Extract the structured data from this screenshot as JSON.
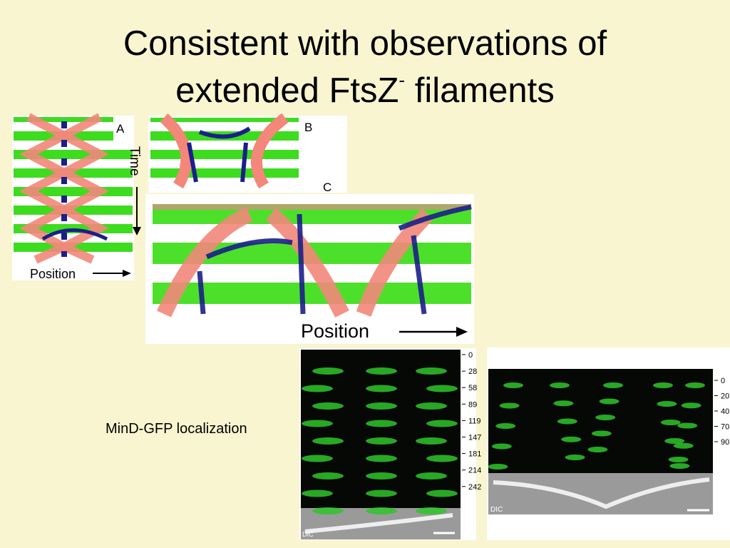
{
  "slide": {
    "title": {
      "line1": "Consistent with observations of",
      "line2": "extended FtsZ",
      "superscript": "-",
      "line2_end": " filaments"
    },
    "caption": "MinD-GFP localization",
    "kymographs": {
      "panel_a": {
        "label": "A",
        "y_label": "Time",
        "x_label": "Position"
      },
      "panel_b": {
        "label": "B"
      },
      "panel_c": {
        "label": "C",
        "x_label": "Position"
      }
    },
    "micrographs": {
      "left": {
        "time_labels": [
          0,
          28,
          58,
          89,
          119,
          147,
          181,
          214,
          242
        ],
        "channel_label": "DIC"
      },
      "right": {
        "time_labels": [
          0,
          20,
          40,
          70,
          90
        ],
        "channel_label": "DIC"
      }
    }
  }
}
